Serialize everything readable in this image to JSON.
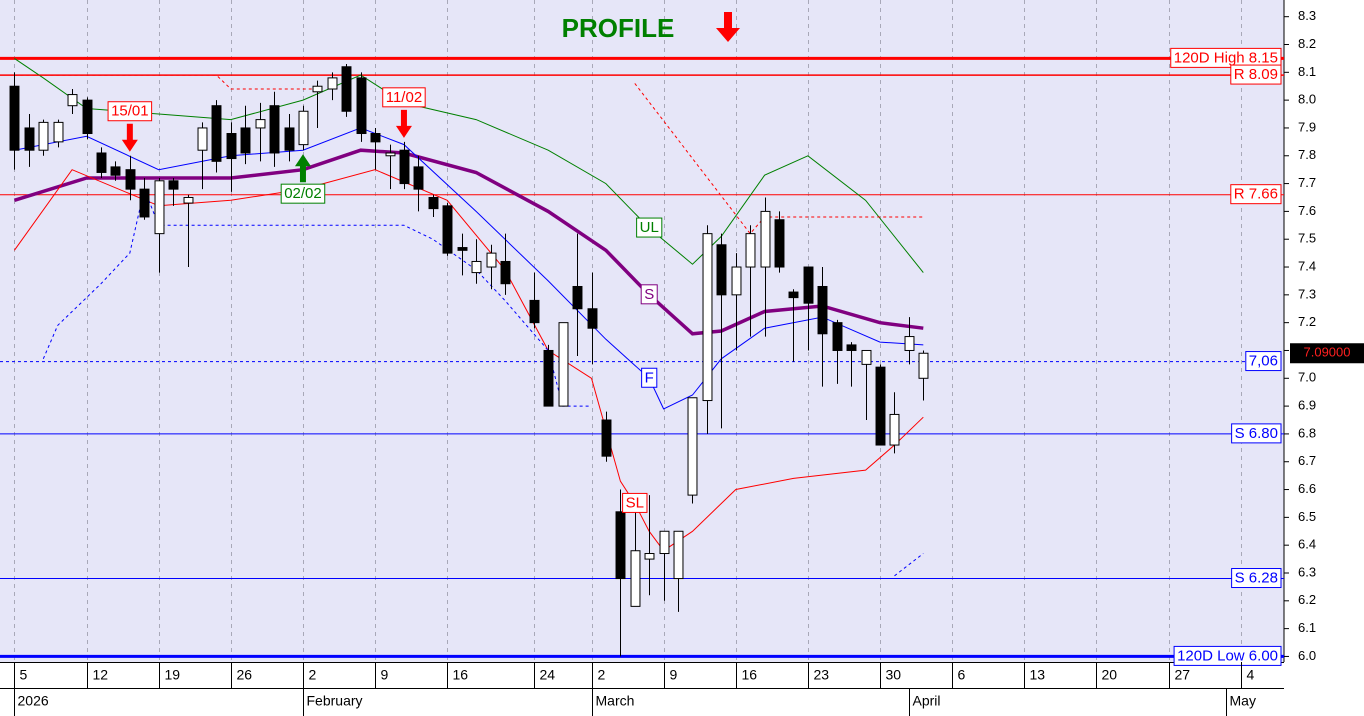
{
  "chart_data": {
    "type": "candlestick",
    "title": "PROFILE",
    "x": [
      "2026-01-05",
      "2026-01-06",
      "2026-01-07",
      "2026-01-08",
      "2026-01-09",
      "2026-01-12",
      "2026-01-13",
      "2026-01-14",
      "2026-01-15",
      "2026-01-16",
      "2026-01-19",
      "2026-01-20",
      "2026-01-21",
      "2026-01-22",
      "2026-01-23",
      "2026-01-26",
      "2026-01-27",
      "2026-01-28",
      "2026-01-29",
      "2026-01-30",
      "2026-02-02",
      "2026-02-03",
      "2026-02-04",
      "2026-02-05",
      "2026-02-06",
      "2026-02-09",
      "2026-02-10",
      "2026-02-11",
      "2026-02-12",
      "2026-02-13",
      "2026-02-16",
      "2026-02-17",
      "2026-02-18",
      "2026-02-19",
      "2026-02-20",
      "2026-02-24",
      "2026-02-25",
      "2026-02-26",
      "2026-02-27",
      "2026-03-02",
      "2026-03-03",
      "2026-03-04",
      "2026-03-05",
      "2026-03-06",
      "2026-03-09",
      "2026-03-10",
      "2026-03-11",
      "2026-03-12",
      "2026-03-13",
      "2026-03-16",
      "2026-03-17",
      "2026-03-18",
      "2026-03-19",
      "2026-03-20",
      "2026-03-23",
      "2026-03-24",
      "2026-03-25",
      "2026-03-26",
      "2026-03-27",
      "2026-03-30",
      "2026-03-31",
      "2026-04-01",
      "2026-04-02"
    ],
    "open": [
      8.05,
      7.9,
      7.82,
      7.85,
      7.98,
      8.0,
      7.81,
      7.76,
      7.75,
      7.68,
      7.52,
      7.71,
      7.63,
      7.82,
      7.98,
      7.88,
      7.9,
      7.9,
      7.98,
      7.9,
      7.84,
      8.03,
      8.04,
      8.12,
      8.08,
      7.88,
      7.8,
      7.82,
      7.76,
      7.65,
      7.62,
      7.47,
      7.38,
      7.4,
      7.42,
      7.28,
      7.1,
      6.9,
      7.33,
      7.25,
      6.85,
      6.52,
      6.18,
      6.35,
      6.37,
      6.28,
      6.58,
      6.92,
      7.48,
      7.3,
      7.4,
      7.4,
      7.57,
      7.31,
      7.4,
      7.33,
      7.2,
      7.12,
      7.05,
      7.04,
      6.76,
      7.1,
      7.0
    ],
    "high": [
      8.1,
      7.95,
      7.93,
      7.93,
      8.04,
      8.01,
      7.83,
      7.78,
      7.8,
      7.72,
      7.72,
      7.72,
      7.66,
      7.92,
      8.0,
      7.92,
      7.98,
      7.99,
      8.03,
      7.95,
      7.98,
      8.07,
      8.1,
      8.13,
      8.1,
      7.9,
      7.84,
      7.85,
      7.8,
      7.66,
      7.63,
      7.52,
      7.5,
      7.48,
      7.52,
      7.38,
      7.12,
      7.2,
      7.52,
      7.38,
      6.88,
      6.6,
      6.55,
      6.58,
      6.45,
      6.45,
      6.93,
      7.55,
      7.52,
      7.45,
      7.55,
      7.65,
      7.6,
      7.32,
      7.4,
      7.4,
      7.21,
      7.13,
      7.1,
      7.05,
      6.95,
      7.22,
      7.1
    ],
    "low": [
      7.75,
      7.76,
      7.8,
      7.83,
      7.95,
      7.86,
      7.72,
      7.71,
      7.64,
      7.57,
      7.38,
      7.62,
      7.4,
      7.68,
      7.74,
      7.67,
      7.77,
      7.78,
      7.76,
      7.78,
      7.82,
      7.9,
      8.0,
      7.94,
      7.85,
      7.75,
      7.68,
      7.68,
      7.6,
      7.58,
      7.44,
      7.37,
      7.34,
      7.32,
      7.3,
      7.18,
      6.9,
      6.9,
      7.08,
      7.05,
      6.7,
      6.0,
      6.18,
      6.22,
      6.2,
      6.16,
      6.55,
      6.8,
      6.82,
      7.1,
      7.15,
      7.15,
      7.38,
      7.06,
      7.1,
      6.97,
      6.98,
      6.97,
      6.85,
      6.76,
      6.73,
      7.05,
      6.92
    ],
    "close": [
      7.82,
      7.82,
      7.92,
      7.92,
      8.02,
      7.88,
      7.74,
      7.73,
      7.68,
      7.58,
      7.71,
      7.68,
      7.65,
      7.9,
      7.78,
      7.79,
      7.81,
      7.93,
      7.81,
      7.82,
      7.96,
      8.05,
      8.08,
      7.96,
      7.88,
      7.85,
      7.81,
      7.7,
      7.68,
      7.61,
      7.45,
      7.46,
      7.42,
      7.45,
      7.34,
      7.2,
      6.9,
      7.2,
      7.25,
      7.18,
      6.72,
      6.28,
      6.38,
      6.37,
      6.45,
      6.45,
      6.93,
      7.52,
      7.3,
      7.4,
      7.52,
      7.6,
      7.4,
      7.29,
      7.27,
      7.16,
      7.1,
      7.1,
      7.1,
      6.76,
      6.87,
      7.15,
      7.09
    ],
    "up_color": "#ffffff",
    "down_color": "#000000",
    "xlim": [
      "2026-01-02",
      "2026-05-07"
    ],
    "xticks": [
      {
        "value": "2026-01-05",
        "label": "5"
      },
      {
        "value": "2026-01-12",
        "label": "12"
      },
      {
        "value": "2026-01-19",
        "label": "19"
      },
      {
        "value": "2026-01-26",
        "label": "26"
      },
      {
        "value": "2026-02-02",
        "label": "2"
      },
      {
        "value": "2026-02-09",
        "label": "9"
      },
      {
        "value": "2026-02-16",
        "label": "16"
      },
      {
        "value": "2026-02-24",
        "label": "24"
      },
      {
        "value": "2026-03-02",
        "label": "2"
      },
      {
        "value": "2026-03-09",
        "label": "9"
      },
      {
        "value": "2026-03-16",
        "label": "16"
      },
      {
        "value": "2026-03-23",
        "label": "23"
      },
      {
        "value": "2026-03-30",
        "label": "30"
      },
      {
        "value": "2026-04-06",
        "label": "6"
      },
      {
        "value": "2026-04-13",
        "label": "13"
      },
      {
        "value": "2026-04-20",
        "label": "20"
      },
      {
        "value": "2026-04-27",
        "label": "27"
      },
      {
        "value": "2026-05-04",
        "label": "4"
      }
    ],
    "month_ticks": [
      {
        "value": "2026-01-05",
        "label": "2026"
      },
      {
        "value": "2026-02-02",
        "label": "February"
      },
      {
        "value": "2026-03-02",
        "label": "March"
      },
      {
        "value": "2026-04-01",
        "label": "April"
      },
      {
        "value": "2026-05-01",
        "label": "May"
      }
    ],
    "ylim": [
      5.98,
      8.36
    ],
    "yticks": [
      {
        "value": 6.0,
        "label": "6.0"
      },
      6.1,
      6.2,
      6.3,
      6.4,
      6.5,
      6.6,
      6.7,
      6.8,
      6.9,
      {
        "value": 7.0,
        "label": "7.0"
      },
      7.1,
      7.2,
      7.3,
      7.4,
      7.5,
      7.6,
      7.7,
      7.8,
      7.9,
      {
        "value": 8.0,
        "label": "8.0"
      },
      8.1,
      8.2,
      8.3
    ],
    "grid": true,
    "series": [
      {
        "name": "UL",
        "color": "#008000",
        "width": 1,
        "label_at": "2026-03-06",
        "x": [
          "2026-01-05",
          "2026-01-07",
          "2026-01-12",
          "2026-01-19",
          "2026-01-26",
          "2026-02-02",
          "2026-02-06",
          "2026-02-11",
          "2026-02-18",
          "2026-02-25",
          "2026-03-03",
          "2026-03-06",
          "2026-03-11",
          "2026-03-13",
          "2026-03-18",
          "2026-03-23",
          "2026-03-27",
          "2026-04-02"
        ],
        "values": [
          8.15,
          8.08,
          7.97,
          7.95,
          7.93,
          8.0,
          8.09,
          7.99,
          7.93,
          7.82,
          7.7,
          7.54,
          7.41,
          7.51,
          7.73,
          7.8,
          7.64,
          7.38
        ]
      },
      {
        "name": "S",
        "color": "#800080",
        "width": 3.5,
        "label_at": "2026-03-06",
        "x": [
          "2026-01-05",
          "2026-01-12",
          "2026-01-19",
          "2026-01-26",
          "2026-02-02",
          "2026-02-06",
          "2026-02-11",
          "2026-02-18",
          "2026-02-25",
          "2026-03-03",
          "2026-03-06",
          "2026-03-11",
          "2026-03-13",
          "2026-03-18",
          "2026-03-24",
          "2026-03-30",
          "2026-04-02"
        ],
        "values": [
          7.64,
          7.72,
          7.72,
          7.72,
          7.75,
          7.82,
          7.81,
          7.74,
          7.6,
          7.46,
          7.3,
          7.16,
          7.17,
          7.24,
          7.26,
          7.2,
          7.18
        ]
      },
      {
        "name": "F",
        "color": "#0000ff",
        "width": 1,
        "label_at": "2026-03-06",
        "x": [
          "2026-01-05",
          "2026-01-12",
          "2026-01-19",
          "2026-01-26",
          "2026-02-02",
          "2026-02-06",
          "2026-02-11",
          "2026-02-18",
          "2026-02-25",
          "2026-03-03",
          "2026-03-06",
          "2026-03-09",
          "2026-03-11",
          "2026-03-13",
          "2026-03-18",
          "2026-03-24",
          "2026-03-30",
          "2026-04-02"
        ],
        "values": [
          7.82,
          7.87,
          7.75,
          7.8,
          7.82,
          7.9,
          7.84,
          7.6,
          7.35,
          7.14,
          7.0,
          6.89,
          6.94,
          7.07,
          7.18,
          7.22,
          7.13,
          7.12
        ]
      },
      {
        "name": "SL",
        "color": "#ff0000",
        "width": 1,
        "label_at": "2026-03-05",
        "x": [
          "2026-01-05",
          "2026-01-09",
          "2026-01-19",
          "2026-01-26",
          "2026-02-02",
          "2026-02-09",
          "2026-02-16",
          "2026-02-20",
          "2026-02-25",
          "2026-03-02",
          "2026-03-04",
          "2026-03-05",
          "2026-03-06",
          "2026-03-09",
          "2026-03-11",
          "2026-03-16",
          "2026-03-20",
          "2026-03-27",
          "2026-03-31",
          "2026-04-02"
        ],
        "values": [
          7.46,
          7.75,
          7.62,
          7.64,
          7.68,
          7.75,
          7.64,
          7.39,
          7.1,
          7.0,
          6.63,
          6.55,
          6.45,
          6.38,
          6.45,
          6.6,
          6.64,
          6.67,
          6.76,
          6.86
        ]
      },
      {
        "color": "#ff0000",
        "width": 1,
        "dash": true,
        "x": [
          "2026-01-05",
          "2026-01-23",
          "2026-01-26",
          "2026-02-03",
          "2026-02-04",
          "2026-03-05",
          "2026-03-17",
          "2026-03-18",
          "2026-04-02"
        ],
        "values": [
          8.09,
          8.09,
          8.04,
          8.04,
          null,
          8.06,
          7.52,
          7.58,
          7.58
        ]
      },
      {
        "color": "#0000ff",
        "width": 1,
        "dash": true,
        "x": [
          "2026-01-07",
          "2026-01-08",
          "2026-01-13",
          "2026-01-15",
          "2026-01-16",
          "2026-01-19",
          "2026-02-11",
          "2026-02-13",
          "2026-02-18",
          "2026-02-20",
          "2026-02-25",
          "2026-02-26",
          "2026-03-02",
          "2026-03-03",
          "2026-03-31",
          "2026-04-02"
        ],
        "values": [
          7.07,
          7.19,
          7.34,
          7.45,
          7.68,
          7.55,
          7.55,
          7.5,
          7.39,
          7.28,
          7.1,
          6.9,
          6.9,
          null,
          6.29,
          6.37
        ]
      }
    ],
    "levels": [
      {
        "label": "120D High 8.15",
        "value": 8.15,
        "color": "#ff0000",
        "width": 3
      },
      {
        "label": "R 8.09",
        "value": 8.09,
        "color": "#ff0000",
        "width": 1.5
      },
      {
        "label": "R 7.66",
        "value": 7.66,
        "color": "#ff0000",
        "width": 1
      },
      {
        "label": "7,06",
        "value": 7.06,
        "color": "#0000ff",
        "width": 1,
        "dash": true
      },
      {
        "label": "S 6.80",
        "value": 6.8,
        "color": "#0000ff",
        "width": 1
      },
      {
        "label": "S 6.28",
        "value": 6.28,
        "color": "#0000ff",
        "width": 1
      },
      {
        "label": "120D Low 6.00",
        "value": 6.0,
        "color": "#0000ff",
        "width": 3
      }
    ],
    "annotations": [
      {
        "text": "15/01",
        "x": "2026-01-15",
        "direction": "down",
        "color": "#ff0000"
      },
      {
        "text": "02/02",
        "x": "2026-02-02",
        "direction": "up",
        "color": "#008000"
      },
      {
        "text": "11/02",
        "x": "2026-02-11",
        "direction": "down",
        "color": "#ff0000"
      }
    ],
    "price_tag": {
      "value": 7.09,
      "label": "7.09000"
    }
  }
}
